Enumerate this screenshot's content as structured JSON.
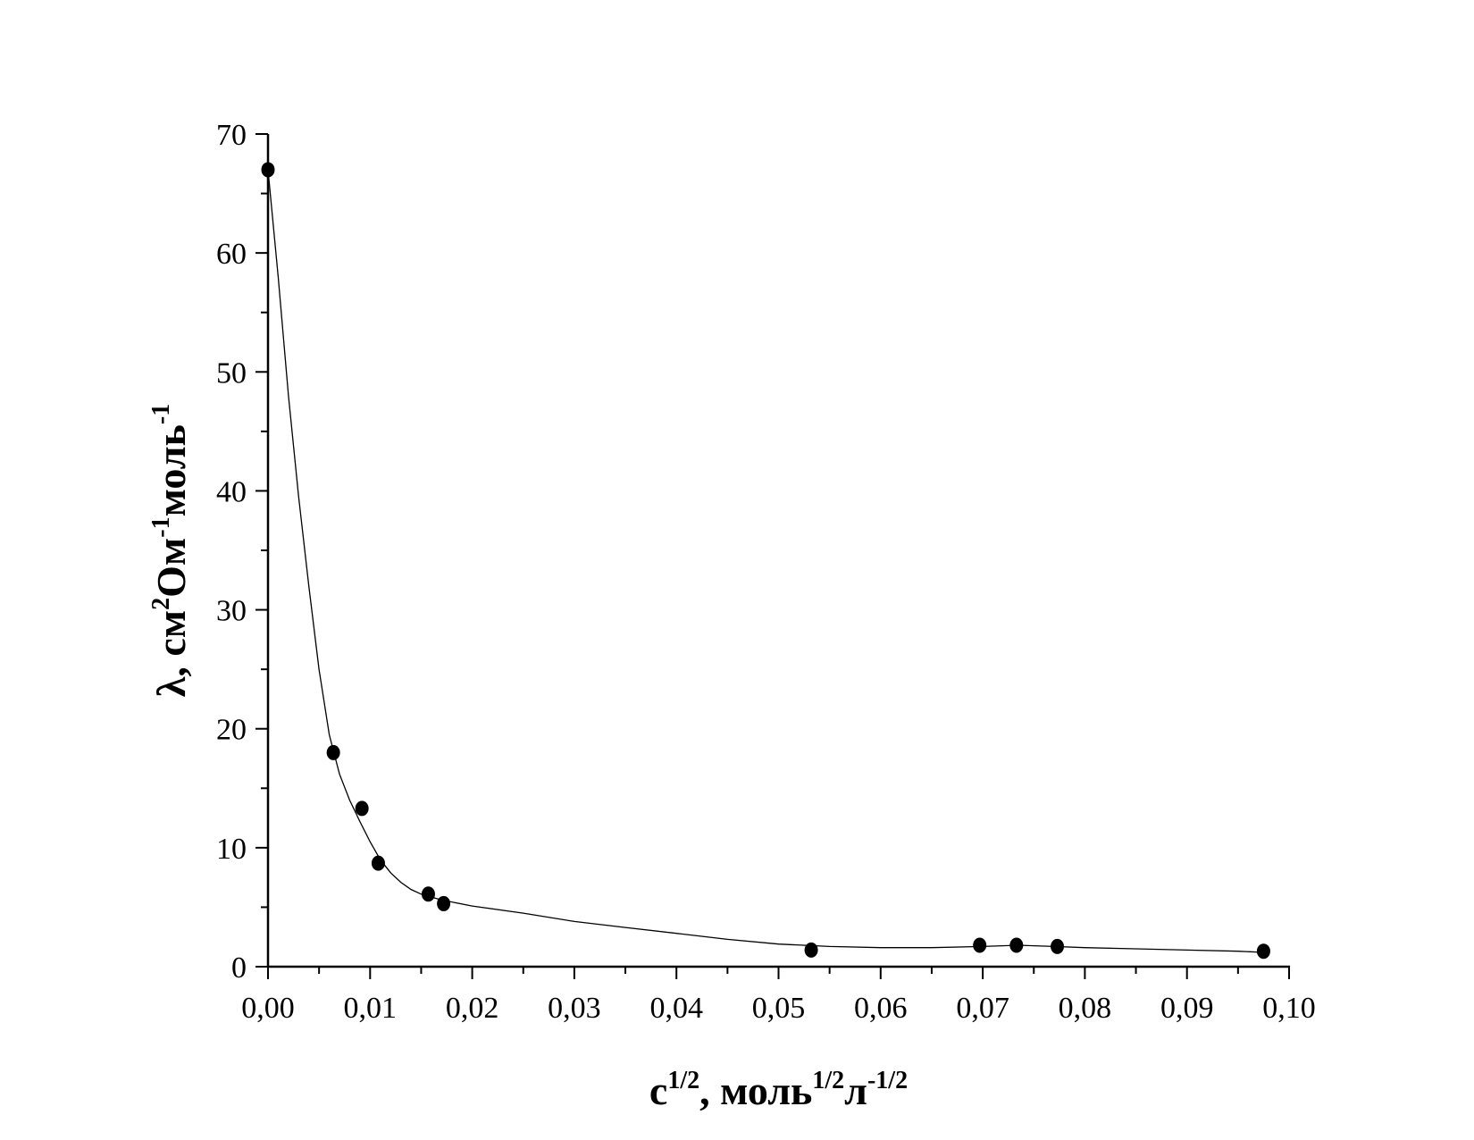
{
  "chart_data": {
    "type": "scatter",
    "xlabel": "c^1/2, моль^1/2 л^-1/2",
    "ylabel": "λ, см^2 Ом^-1 моль^-1",
    "xlabel_parts": [
      {
        "text": "c",
        "sup": false
      },
      {
        "text": "1/2",
        "sup": true
      },
      {
        "text": ", моль",
        "sup": false
      },
      {
        "text": "1/2",
        "sup": true
      },
      {
        "text": "л",
        "sup": false
      },
      {
        "text": "-1/2",
        "sup": true
      }
    ],
    "ylabel_parts": [
      {
        "text": "λ, см",
        "sup": false
      },
      {
        "text": "2",
        "sup": true
      },
      {
        "text": "Ом",
        "sup": false
      },
      {
        "text": "-1",
        "sup": true
      },
      {
        "text": "моль",
        "sup": false
      },
      {
        "text": "-1",
        "sup": true
      }
    ],
    "xlim": [
      0,
      0.1
    ],
    "ylim": [
      0,
      70
    ],
    "x_ticks": [
      0,
      0.01,
      0.02,
      0.03,
      0.04,
      0.05,
      0.06,
      0.07,
      0.08,
      0.09,
      0.1
    ],
    "x_tick_labels": [
      "0,00",
      "0,01",
      "0,02",
      "0,03",
      "0,04",
      "0,05",
      "0,06",
      "0,07",
      "0,08",
      "0,09",
      "0,10"
    ],
    "y_ticks": [
      0,
      10,
      20,
      30,
      40,
      50,
      60,
      70
    ],
    "y_tick_labels": [
      "0",
      "10",
      "20",
      "30",
      "40",
      "50",
      "60",
      "70"
    ],
    "grid": false,
    "series": [
      {
        "points": [
          {
            "x": 0.0,
            "y": 67.0
          },
          {
            "x": 0.0064,
            "y": 18.0
          },
          {
            "x": 0.0092,
            "y": 13.3
          },
          {
            "x": 0.0108,
            "y": 8.7
          },
          {
            "x": 0.0157,
            "y": 6.1
          },
          {
            "x": 0.0172,
            "y": 5.3
          },
          {
            "x": 0.0532,
            "y": 1.4
          },
          {
            "x": 0.0697,
            "y": 1.8
          },
          {
            "x": 0.0733,
            "y": 1.8
          },
          {
            "x": 0.0773,
            "y": 1.7
          },
          {
            "x": 0.0975,
            "y": 1.3
          }
        ]
      }
    ],
    "fit_curve": [
      {
        "x": 0.0,
        "y": 67.0
      },
      {
        "x": 0.001,
        "y": 58.0
      },
      {
        "x": 0.002,
        "y": 48.0
      },
      {
        "x": 0.003,
        "y": 39.5
      },
      {
        "x": 0.004,
        "y": 32.0
      },
      {
        "x": 0.005,
        "y": 25.0
      },
      {
        "x": 0.006,
        "y": 19.5
      },
      {
        "x": 0.007,
        "y": 16.2
      },
      {
        "x": 0.008,
        "y": 14.0
      },
      {
        "x": 0.009,
        "y": 12.2
      },
      {
        "x": 0.01,
        "y": 10.5
      },
      {
        "x": 0.011,
        "y": 9.0
      },
      {
        "x": 0.012,
        "y": 7.9
      },
      {
        "x": 0.013,
        "y": 7.1
      },
      {
        "x": 0.014,
        "y": 6.5
      },
      {
        "x": 0.015,
        "y": 6.1
      },
      {
        "x": 0.017,
        "y": 5.6
      },
      {
        "x": 0.02,
        "y": 5.1
      },
      {
        "x": 0.025,
        "y": 4.5
      },
      {
        "x": 0.03,
        "y": 3.8
      },
      {
        "x": 0.035,
        "y": 3.3
      },
      {
        "x": 0.04,
        "y": 2.8
      },
      {
        "x": 0.045,
        "y": 2.3
      },
      {
        "x": 0.05,
        "y": 1.9
      },
      {
        "x": 0.055,
        "y": 1.7
      },
      {
        "x": 0.06,
        "y": 1.6
      },
      {
        "x": 0.065,
        "y": 1.6
      },
      {
        "x": 0.07,
        "y": 1.7
      },
      {
        "x": 0.0735,
        "y": 1.8
      },
      {
        "x": 0.077,
        "y": 1.7
      },
      {
        "x": 0.08,
        "y": 1.6
      },
      {
        "x": 0.085,
        "y": 1.5
      },
      {
        "x": 0.09,
        "y": 1.4
      },
      {
        "x": 0.095,
        "y": 1.3
      },
      {
        "x": 0.0975,
        "y": 1.2
      }
    ],
    "colors": {
      "marker": "#000000",
      "line": "#000000",
      "axis": "#000000"
    }
  }
}
